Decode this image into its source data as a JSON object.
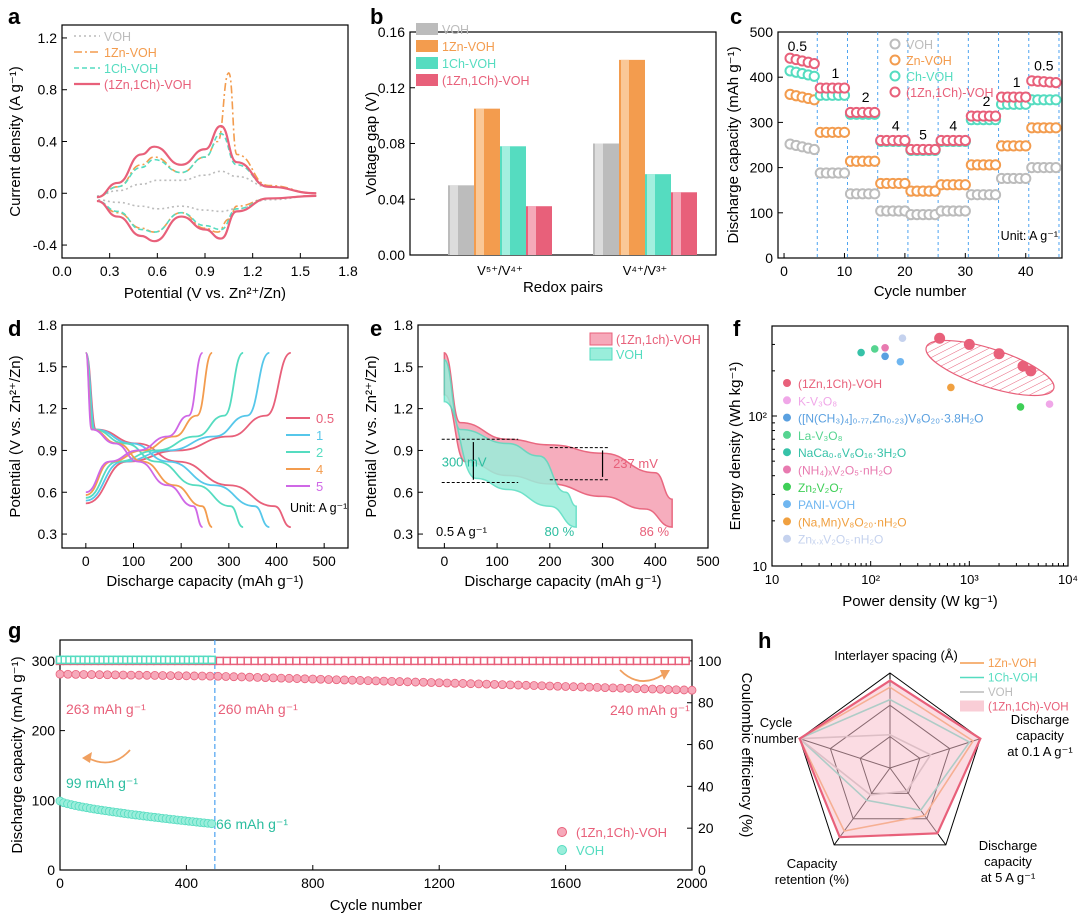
{
  "colors": {
    "voh": "#bcbcbc",
    "zn": "#f39c4e",
    "ch": "#55dcc0",
    "co": "#e8607a",
    "co_fill": "#f7c0cc",
    "co_face": "#f6a9ba",
    "ch_face": "#9aeedb",
    "grid": "#4da3f0",
    "arrow": "#f0a060"
  },
  "panels": {
    "a": {
      "letter": "a"
    },
    "b": {
      "letter": "b"
    },
    "c": {
      "letter": "c"
    },
    "d": {
      "letter": "d"
    },
    "e": {
      "letter": "e"
    },
    "f": {
      "letter": "f"
    },
    "g": {
      "letter": "g"
    },
    "h": {
      "letter": "h"
    }
  },
  "chart_data": [
    {
      "id": "a",
      "type": "line",
      "title": "",
      "xlabel": "Potential (V vs. Zn²⁺/Zn)",
      "ylabel": "Current density (A g⁻¹)",
      "xlim": [
        0.0,
        1.8
      ],
      "ylim": [
        -0.5,
        1.3
      ],
      "xticks": [
        "0.0",
        "0.3",
        "0.6",
        "0.9",
        "1.2",
        "1.5",
        "1.8"
      ],
      "yticks": [
        "-0.4",
        "0.0",
        "0.4",
        "0.8",
        "1.2"
      ],
      "legend": [
        "VOH",
        "1Zn-VOH",
        "1Ch-VOH",
        "(1Zn,1Ch)-VOH"
      ],
      "series": [
        {
          "name": "VOH",
          "x": [
            0.22,
            0.35,
            0.5,
            0.6,
            0.75,
            0.9,
            1.0,
            1.1,
            1.3,
            1.6
          ],
          "upper": [
            -0.02,
            0.02,
            0.07,
            0.1,
            0.1,
            0.14,
            0.17,
            0.13,
            0.05,
            0.0
          ],
          "lower": [
            -0.05,
            -0.07,
            -0.1,
            -0.12,
            -0.1,
            -0.13,
            -0.14,
            -0.12,
            -0.05,
            -0.02
          ]
        },
        {
          "name": "1Zn-VOH",
          "x": [
            0.22,
            0.35,
            0.5,
            0.58,
            0.75,
            0.9,
            0.98,
            1.05,
            1.1,
            1.3,
            1.6
          ],
          "upper": [
            -0.03,
            0.05,
            0.22,
            0.28,
            0.16,
            0.28,
            0.4,
            0.93,
            0.3,
            0.06,
            0.0
          ],
          "lower": [
            -0.06,
            -0.15,
            -0.27,
            -0.3,
            -0.15,
            -0.27,
            -0.3,
            -0.2,
            -0.1,
            -0.04,
            -0.02
          ]
        },
        {
          "name": "1Ch-VOH",
          "x": [
            0.22,
            0.35,
            0.5,
            0.58,
            0.75,
            0.9,
            1.0,
            1.1,
            1.3,
            1.6
          ],
          "upper": [
            -0.03,
            0.05,
            0.2,
            0.26,
            0.16,
            0.28,
            0.46,
            0.22,
            0.05,
            0.0
          ],
          "lower": [
            -0.06,
            -0.14,
            -0.28,
            -0.3,
            -0.15,
            -0.25,
            -0.28,
            -0.12,
            -0.04,
            -0.02
          ]
        },
        {
          "name": "(1Zn,1Ch)-VOH",
          "x": [
            0.22,
            0.35,
            0.5,
            0.58,
            0.75,
            0.9,
            1.0,
            1.1,
            1.3,
            1.6
          ],
          "upper": [
            -0.03,
            0.08,
            0.3,
            0.36,
            0.22,
            0.34,
            0.52,
            0.24,
            0.05,
            0.0
          ],
          "lower": [
            -0.06,
            -0.18,
            -0.33,
            -0.37,
            -0.18,
            -0.28,
            -0.35,
            -0.14,
            -0.04,
            -0.02
          ]
        }
      ]
    },
    {
      "id": "b",
      "type": "bar",
      "xlabel": "Redox pairs",
      "ylabel": "Voltage gap (V)",
      "ylim": [
        0,
        0.16
      ],
      "yticks": [
        "0.00",
        "0.04",
        "0.08",
        "0.12",
        "0.16"
      ],
      "categories": [
        "V⁵⁺/V⁴⁺",
        "V⁴⁺/V³⁺"
      ],
      "series": [
        {
          "name": "VOH",
          "values": [
            0.05,
            0.08
          ]
        },
        {
          "name": "1Zn-VOH",
          "values": [
            0.105,
            0.14
          ]
        },
        {
          "name": "1Ch-VOH",
          "values": [
            0.078,
            0.058
          ]
        },
        {
          "name": "(1Zn,1Ch)-VOH",
          "values": [
            0.035,
            0.045
          ]
        }
      ]
    },
    {
      "id": "c",
      "type": "scatter",
      "xlabel": "Cycle number",
      "ylabel": "Discharge capacity (mAh g⁻¹)",
      "xlim": [
        -1,
        46
      ],
      "ylim": [
        0,
        500
      ],
      "xticks": [
        "0",
        "10",
        "20",
        "30",
        "40"
      ],
      "yticks": [
        "0",
        "100",
        "200",
        "300",
        "400",
        "500"
      ],
      "legend": [
        "VOH",
        "Zn-VOH",
        "Ch-VOH",
        "(1Zn,1Ch)-VOH"
      ],
      "rate_labels": [
        "0.5",
        "1",
        "2",
        "4",
        "5",
        "4",
        "2",
        "1",
        "0.5"
      ],
      "unit_note": "Unit: A g⁻¹",
      "segment_levels": {
        "VOH": [
          240,
          188,
          142,
          104,
          96,
          104,
          140,
          176,
          200
        ],
        "Zn-VOH": [
          350,
          278,
          214,
          165,
          148,
          162,
          206,
          248,
          288
        ],
        "Ch-VOH": [
          402,
          360,
          318,
          258,
          238,
          258,
          306,
          340,
          350
        ],
        "(1Zn,1Ch)-VOH": [
          430,
          376,
          322,
          260,
          240,
          260,
          314,
          356,
          392
        ]
      }
    },
    {
      "id": "d",
      "type": "line",
      "xlabel": "Discharge capacity (mAh g⁻¹)",
      "ylabel": "Potential (V vs. Zn²⁺/Zn)",
      "xlim": [
        -50,
        550
      ],
      "ylim": [
        0.2,
        1.8
      ],
      "xticks": [
        "0",
        "100",
        "200",
        "300",
        "400",
        "500"
      ],
      "yticks": [
        "0.3",
        "0.6",
        "0.9",
        "1.2",
        "1.5",
        "1.8"
      ],
      "legend": [
        "0.5",
        "1",
        "2",
        "4",
        "5"
      ],
      "unit_note": "Unit: A g⁻¹",
      "capacities": [
        430,
        385,
        330,
        265,
        245
      ]
    },
    {
      "id": "e",
      "type": "area",
      "xlabel": "Discharge capacity (mAh g⁻¹)",
      "ylabel": "Potential (V vs. Zn²⁺/Zn)",
      "xlim": [
        -50,
        500
      ],
      "ylim": [
        0.2,
        1.8
      ],
      "xticks": [
        "0",
        "100",
        "200",
        "300",
        "400",
        "500"
      ],
      "yticks": [
        "0.3",
        "0.6",
        "0.9",
        "1.2",
        "1.5",
        "1.8"
      ],
      "legend": [
        "(1Zn,1ch)-VOH",
        "VOH"
      ],
      "annotations": {
        "gap_voh": "300 mV",
        "gap_co": "237 mV",
        "rate": "0.5 A g⁻¹",
        "pct_voh": "80 %",
        "pct_co": "86 %"
      }
    },
    {
      "id": "f",
      "type": "scatter",
      "xlabel": "Power density (W kg⁻¹)",
      "ylabel": "Energy density (Wh kg⁻¹)",
      "xscale": "log",
      "yscale": "log",
      "xticks": [
        "10",
        "10²",
        "10³",
        "10⁴"
      ],
      "yticks": [
        "10",
        "10²"
      ],
      "legend": [
        "(1Zn,1Ch)-VOH",
        "K-V₃O₈",
        "([N(CH₃)₄]₀.₇₇,Zn₀.₂₃)V₈O₂₀·3.8H₂O",
        "La-V₃O₈",
        "NaCa₀.₆V₆O₁₆·3H₂O",
        "(NH₄)ₓV₂O₅·nH₂O",
        "Zn₂V₂O₇",
        "PANI-VOH",
        "(Na,Mn)V₈O₂₀·nH₂O",
        "Znₓ.ₓV₂O₅·nH₂O"
      ],
      "points": [
        {
          "name": "(1Zn,1Ch)-VOH",
          "x": 500,
          "y": 330
        },
        {
          "name": "(1Zn,1Ch)-VOH",
          "x": 1000,
          "y": 300
        },
        {
          "name": "(1Zn,1Ch)-VOH",
          "x": 2000,
          "y": 260
        },
        {
          "name": "(1Zn,1Ch)-VOH",
          "x": 3500,
          "y": 215
        },
        {
          "name": "(1Zn,1Ch)-VOH",
          "x": 4200,
          "y": 200
        },
        {
          "name": "K-V₃O₈",
          "x": 6500,
          "y": 120
        },
        {
          "name": "([N(CH₃)₄]₀.₇₇,Zn₀.₂₃)V₈O₂₀·3.8H₂O",
          "x": 140,
          "y": 250
        },
        {
          "name": "La-V₃O₈",
          "x": 110,
          "y": 280
        },
        {
          "name": "NaCa₀.₆V₆O₁₆·3H₂O",
          "x": 80,
          "y": 265
        },
        {
          "name": "(NH₄)ₓV₂O₅·nH₂O",
          "x": 140,
          "y": 285
        },
        {
          "name": "Zn₂V₂O₇",
          "x": 3300,
          "y": 115
        },
        {
          "name": "PANI-VOH",
          "x": 200,
          "y": 230
        },
        {
          "name": "(Na,Mn)V₈O₂₀·nH₂O",
          "x": 650,
          "y": 155
        },
        {
          "name": "Znₓ.ₓV₂O₅·nH₂O",
          "x": 210,
          "y": 330
        }
      ]
    },
    {
      "id": "g",
      "type": "scatter",
      "xlabel": "Cycle number",
      "ylabel": "Discharge capacity (mAh g⁻¹)",
      "ylabel2": "Coulombic efficiency (%)",
      "xlim": [
        0,
        2000
      ],
      "ylim": [
        0,
        330
      ],
      "ylim2": [
        0,
        110
      ],
      "xticks": [
        "0",
        "400",
        "800",
        "1200",
        "1600",
        "2000"
      ],
      "yticks": [
        "0",
        "100",
        "200",
        "300"
      ],
      "yticks2": [
        "0",
        "20",
        "40",
        "60",
        "80",
        "100"
      ],
      "legend": [
        "(1Zn,1Ch)-VOH",
        "VOH"
      ],
      "labels": {
        "c1": "263 mAh g⁻¹",
        "c2": "260 mAh g⁻¹",
        "c3": "240 mAh g⁻¹",
        "v1": "99 mAh g⁻¹",
        "v2": "66 mAh g⁻¹"
      },
      "series": [
        {
          "name": "(1Zn,1Ch)-VOH capacity",
          "start": 263,
          "mid": 260,
          "end": 240
        },
        {
          "name": "VOH capacity",
          "start": 99,
          "end": 66,
          "end_cycle": 500
        },
        {
          "name": "(1Zn,1Ch)-VOH CE",
          "value": 100
        },
        {
          "name": "VOH CE",
          "value": 100
        }
      ]
    },
    {
      "id": "h",
      "type": "radar",
      "axes": [
        "Interlayer spacing (Å)",
        "Discharge capacity at 0.1 A g⁻¹",
        "Discharge capacity at 5 A g⁻¹",
        "Capacity retention (%)",
        "Cycle number"
      ],
      "legend": [
        "1Zn-VOH",
        "1Ch-VOH",
        "VOH",
        "(1Zn,1Ch)-VOH"
      ],
      "series": [
        {
          "name": "1Zn-VOH",
          "values": [
            0.85,
            0.92,
            0.62,
            0.82,
            1.0
          ]
        },
        {
          "name": "1Ch-VOH",
          "values": [
            0.72,
            0.88,
            0.55,
            0.42,
            1.0
          ]
        },
        {
          "name": "VOH",
          "values": [
            0.35,
            0.45,
            0.3,
            0.35,
            1.0
          ]
        },
        {
          "name": "(1Zn,1Ch)-VOH",
          "values": [
            0.92,
            1.0,
            0.85,
            0.9,
            1.0
          ]
        }
      ]
    }
  ]
}
